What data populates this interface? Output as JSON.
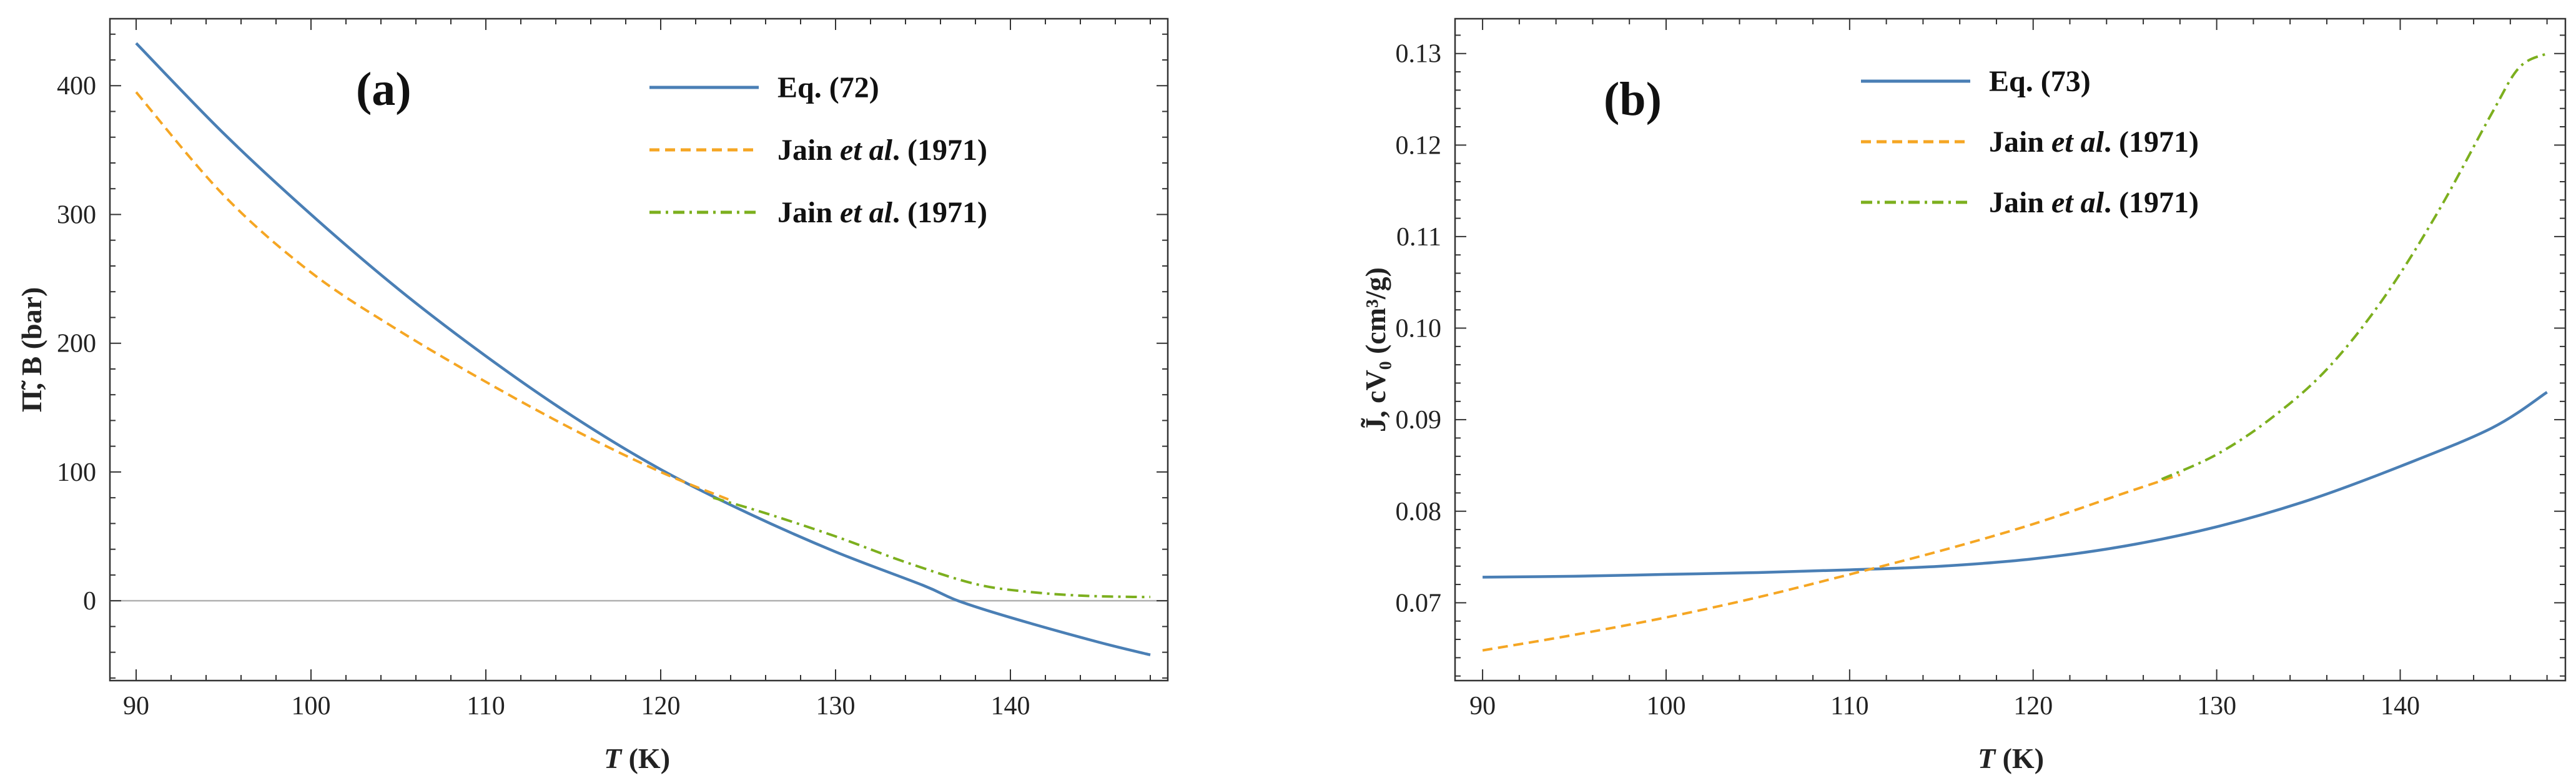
{
  "chart_data": [
    {
      "type": "line",
      "panel_label": "(a)",
      "xlabel_italic": "T",
      "xlabel_unit": " (K)",
      "ylabel": "Π̃, B (bar)",
      "xlim": [
        88.5,
        149
      ],
      "ylim": [
        -62,
        452
      ],
      "xticks": [
        90,
        100,
        110,
        120,
        130,
        140
      ],
      "yticks": [
        0,
        100,
        200,
        300,
        400
      ],
      "zero_line": true,
      "legend_position": "top-right",
      "series": [
        {
          "name": "Eq. (72)",
          "label_plain": "Eq. (72)",
          "style": "solid",
          "color": "#4a7fb5",
          "x": [
            90,
            95,
            100,
            105,
            110,
            115,
            120,
            125,
            130,
            135,
            137,
            140,
            145,
            148
          ],
          "y": [
            433,
            363,
            300,
            242,
            190,
            143,
            102,
            68,
            38,
            12,
            0,
            -13,
            -32,
            -42
          ]
        },
        {
          "name": "Jain et al. (1971)",
          "label_pre": "Jain ",
          "label_italic": "et al",
          "label_post": ". (1971)",
          "style": "dashed",
          "color": "#f5a623",
          "x": [
            90,
            95,
            100,
            105,
            110,
            115,
            120,
            124
          ],
          "y": [
            395,
            315,
            255,
            210,
            170,
            133,
            100,
            78
          ]
        },
        {
          "name": "Jain et al. (1971)",
          "label_pre": "Jain ",
          "label_italic": "et al",
          "label_post": ". (1971)",
          "style": "dashdot",
          "color": "#7caf1e",
          "x": [
            123,
            126,
            130,
            134,
            138,
            141,
            144,
            147,
            148
          ],
          "y": [
            80,
            68,
            50,
            30,
            13,
            7,
            4,
            3,
            3
          ]
        }
      ]
    },
    {
      "type": "line",
      "panel_label": "(b)",
      "xlabel_italic": "T",
      "xlabel_unit": " (K)",
      "ylabel": "J̃, cV₀ (cm³/g)",
      "xlim": [
        88.5,
        149
      ],
      "ylim": [
        0.0615,
        0.1338
      ],
      "xticks": [
        90,
        100,
        110,
        120,
        130,
        140
      ],
      "yticks": [
        0.07,
        0.08,
        0.09,
        0.1,
        0.11,
        0.12,
        0.13
      ],
      "ytick_labels": [
        "0.07",
        "0.08",
        "0.09",
        "0.10",
        "0.11",
        "0.12",
        "0.13"
      ],
      "zero_line": false,
      "legend_position": "top-center",
      "series": [
        {
          "name": "Eq. (73)",
          "label_plain": "Eq. (73)",
          "style": "solid",
          "color": "#4a7fb5",
          "x": [
            90,
            95,
            100,
            105,
            110,
            115,
            120,
            125,
            130,
            135,
            140,
            145,
            148
          ],
          "y": [
            0.0728,
            0.0729,
            0.0731,
            0.0733,
            0.0736,
            0.074,
            0.0748,
            0.0762,
            0.0783,
            0.0812,
            0.0849,
            0.0891,
            0.093
          ]
        },
        {
          "name": "Jain et al. (1971)",
          "label_pre": "Jain ",
          "label_italic": "et al",
          "label_post": ". (1971)",
          "style": "dashed",
          "color": "#f5a623",
          "x": [
            90,
            95,
            100,
            105,
            110,
            115,
            120,
            125,
            128
          ],
          "y": [
            0.0648,
            0.0665,
            0.0684,
            0.0706,
            0.0731,
            0.0757,
            0.0786,
            0.082,
            0.084
          ]
        },
        {
          "name": "Jain et al. (1971)",
          "label_pre": "Jain ",
          "label_italic": "et al",
          "label_post": ". (1971)",
          "style": "dashdot",
          "color": "#7caf1e",
          "x": [
            127,
            130,
            133,
            136,
            139,
            142,
            145,
            146.5,
            148
          ],
          "y": [
            0.0835,
            0.0862,
            0.0902,
            0.0955,
            0.103,
            0.1125,
            0.1235,
            0.1285,
            0.13
          ]
        }
      ]
    }
  ]
}
